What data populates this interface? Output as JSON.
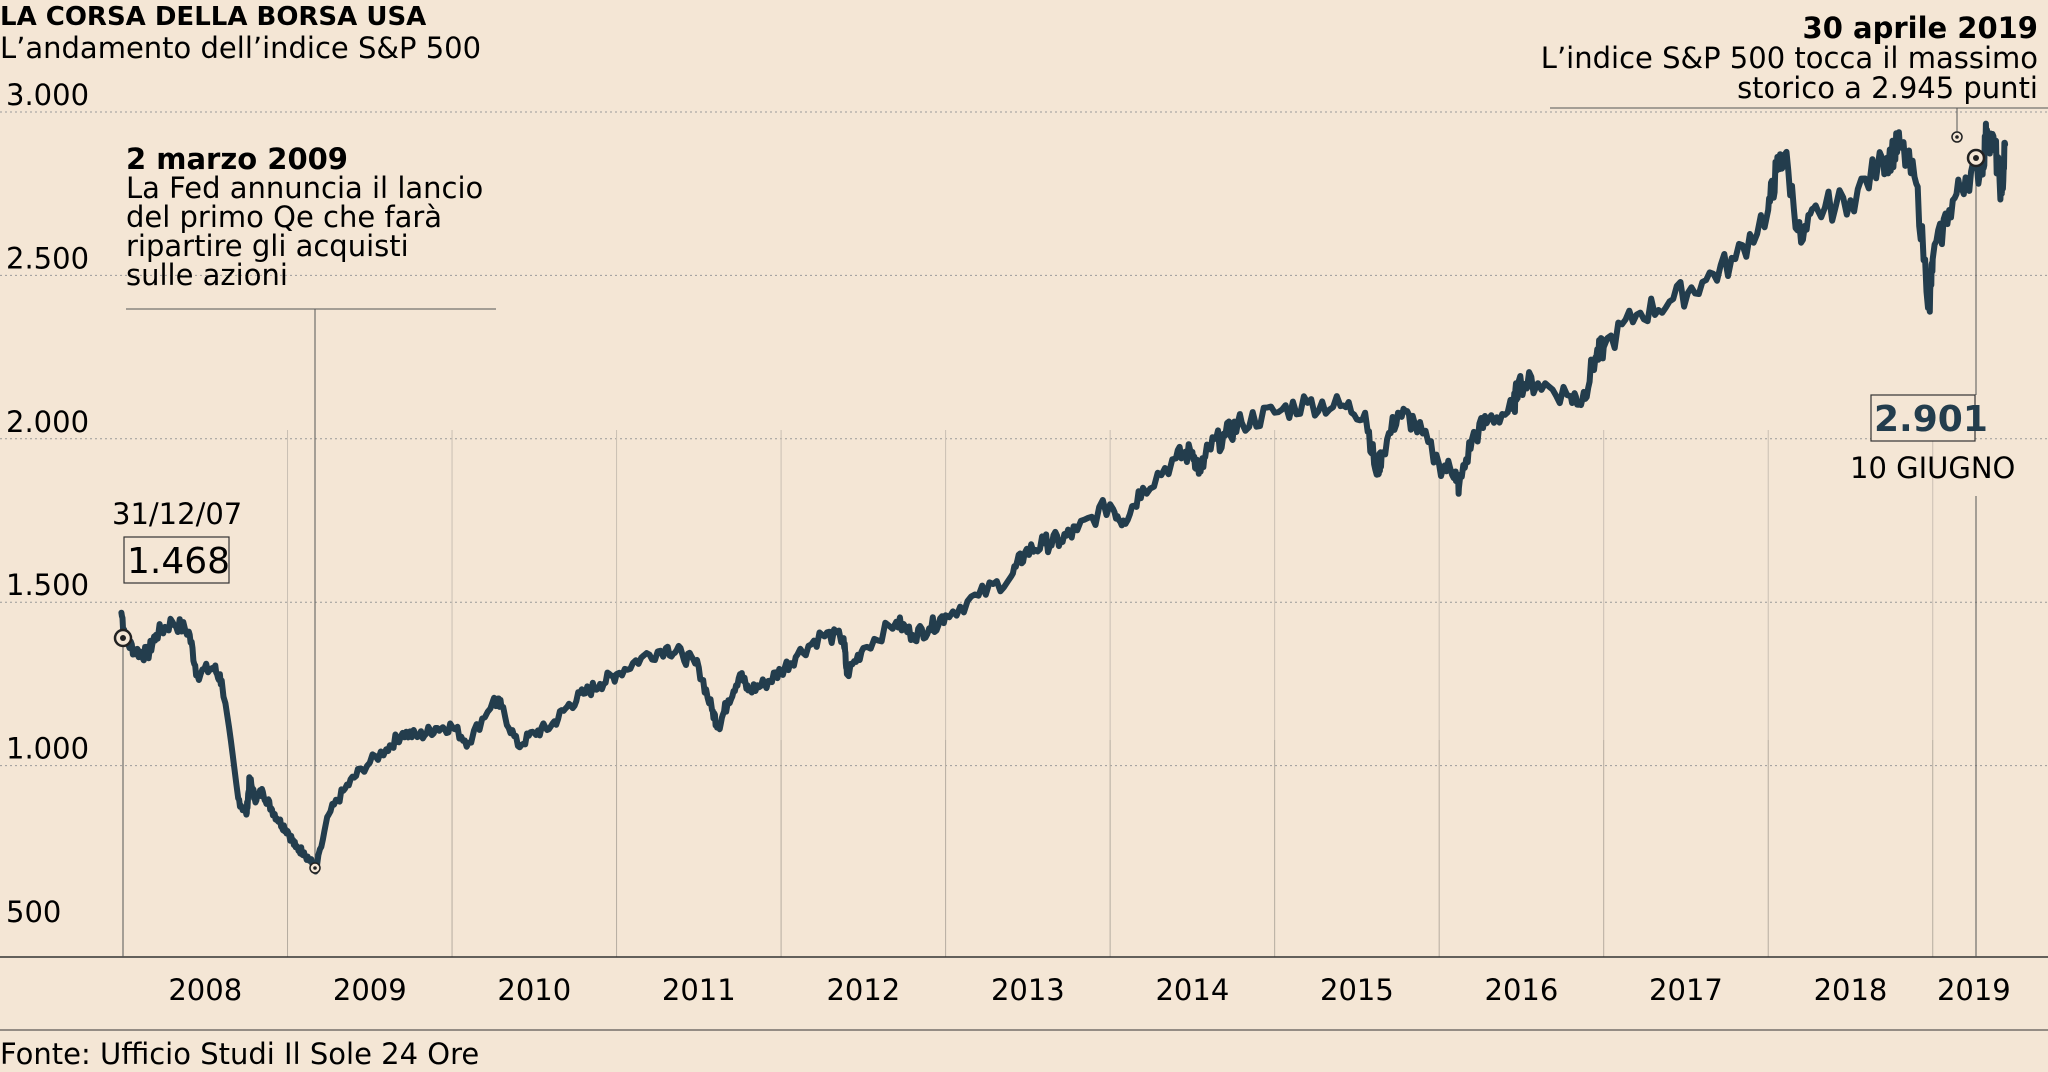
{
  "colors": {
    "background": "#f4e6d5",
    "line": "#233d4d",
    "grid": "#a0a0a0",
    "text": "#1f1f1f"
  },
  "chart_data": {
    "type": "line",
    "title": "LA CORSA DELLA BORSA USA",
    "subtitle": "L’andamento dell’indice S&P 500",
    "source": "Fonte: Ufficio Studi Il Sole 24 Ore",
    "y_ticks": [
      "3.000",
      "2.500",
      "2.000",
      "1.500",
      "1.000",
      "500"
    ],
    "y_tick_values": [
      3000,
      2500,
      2000,
      1500,
      1000,
      500
    ],
    "ylim": [
      450,
      3100
    ],
    "x_ticks": [
      "2008",
      "2009",
      "2010",
      "2011",
      "2012",
      "2013",
      "2014",
      "2015",
      "2016",
      "2017",
      "2018",
      "2019"
    ],
    "xlim": [
      2007.98,
      2019.6
    ],
    "grid": "horizontal dotted lines, vertical solid lines at year boundaries",
    "series": [
      {
        "x": [
          2007.99,
          2008.02,
          2008.08,
          2008.15,
          2008.2,
          2008.3,
          2008.4,
          2008.45,
          2008.55,
          2008.6,
          2008.7,
          2008.75,
          2008.77,
          2008.8,
          2008.85,
          2008.9,
          2008.95,
          2009.0,
          2009.05,
          2009.1,
          2009.15,
          2009.17,
          2009.25,
          2009.35,
          2009.45,
          2009.6,
          2009.7,
          2009.8,
          2009.9,
          2010.0,
          2010.1,
          2010.25,
          2010.3,
          2010.4,
          2010.5,
          2010.6,
          2010.7,
          2010.8,
          2010.9,
          2011.0,
          2011.15,
          2011.3,
          2011.4,
          2011.5,
          2011.58,
          2011.62,
          2011.68,
          2011.75,
          2011.8,
          2011.9,
          2012.0,
          2012.1,
          2012.25,
          2012.38,
          2012.4,
          2012.5,
          2012.7,
          2012.8,
          2012.9,
          2013.0,
          2013.2,
          2013.4,
          2013.48,
          2013.6,
          2013.7,
          2013.8,
          2014.0,
          2014.08,
          2014.2,
          2014.4,
          2014.5,
          2014.55,
          2014.6,
          2014.7,
          2014.8,
          2015.0,
          2015.2,
          2015.4,
          2015.55,
          2015.62,
          2015.65,
          2015.75,
          2015.85,
          2016.0,
          2016.1,
          2016.12,
          2016.2,
          2016.3,
          2016.45,
          2016.48,
          2016.6,
          2016.8,
          2016.87,
          2016.95,
          2017.0,
          2017.2,
          2017.4,
          2017.6,
          2017.8,
          2018.0,
          2018.05,
          2018.1,
          2018.2,
          2018.3,
          2018.5,
          2018.7,
          2018.75,
          2018.8,
          2018.9,
          2018.98,
          2019.0,
          2019.1,
          2019.2,
          2019.3,
          2019.33,
          2019.38,
          2019.42,
          2019.44
        ],
        "values": [
          1468,
          1380,
          1350,
          1340,
          1400,
          1440,
          1410,
          1280,
          1300,
          1260,
          900,
          850,
          960,
          900,
          920,
          870,
          830,
          800,
          750,
          735,
          700,
          676,
          850,
          930,
          990,
          1050,
          1100,
          1090,
          1115,
          1120,
          1070,
          1200,
          1180,
          1060,
          1100,
          1120,
          1180,
          1220,
          1250,
          1280,
          1330,
          1360,
          1340,
          1300,
          1170,
          1120,
          1200,
          1280,
          1230,
          1250,
          1290,
          1340,
          1400,
          1390,
          1280,
          1360,
          1440,
          1400,
          1420,
          1460,
          1520,
          1580,
          1650,
          1680,
          1690,
          1720,
          1800,
          1750,
          1850,
          1940,
          1960,
          1900,
          1970,
          2010,
          2050,
          2080,
          2110,
          2100,
          2080,
          1890,
          1950,
          2080,
          2050,
          1920,
          1900,
          1850,
          2000,
          2060,
          2090,
          2170,
          2170,
          2130,
          2120,
          2250,
          2280,
          2380,
          2420,
          2480,
          2550,
          2700,
          2820,
          2870,
          2600,
          2700,
          2730,
          2850,
          2870,
          2900,
          2780,
          2400,
          2550,
          2700,
          2800,
          2830,
          2945,
          2880,
          2750,
          2901
        ]
      }
    ],
    "annotations": [
      {
        "date": "31/12/07",
        "value": "1.468"
      },
      {
        "date": "2 marzo 2009",
        "lines": [
          "La Fed annuncia il lancio",
          "del primo Qe che farà",
          "ripartire gli acquisti",
          "sulle azioni"
        ]
      },
      {
        "date": "30 aprile 2019",
        "lines": [
          "L’indice S&P 500 tocca il massimo",
          "storico a 2.945 punti"
        ]
      },
      {
        "date": "10 GIUGNO",
        "value": "2.901"
      }
    ]
  }
}
